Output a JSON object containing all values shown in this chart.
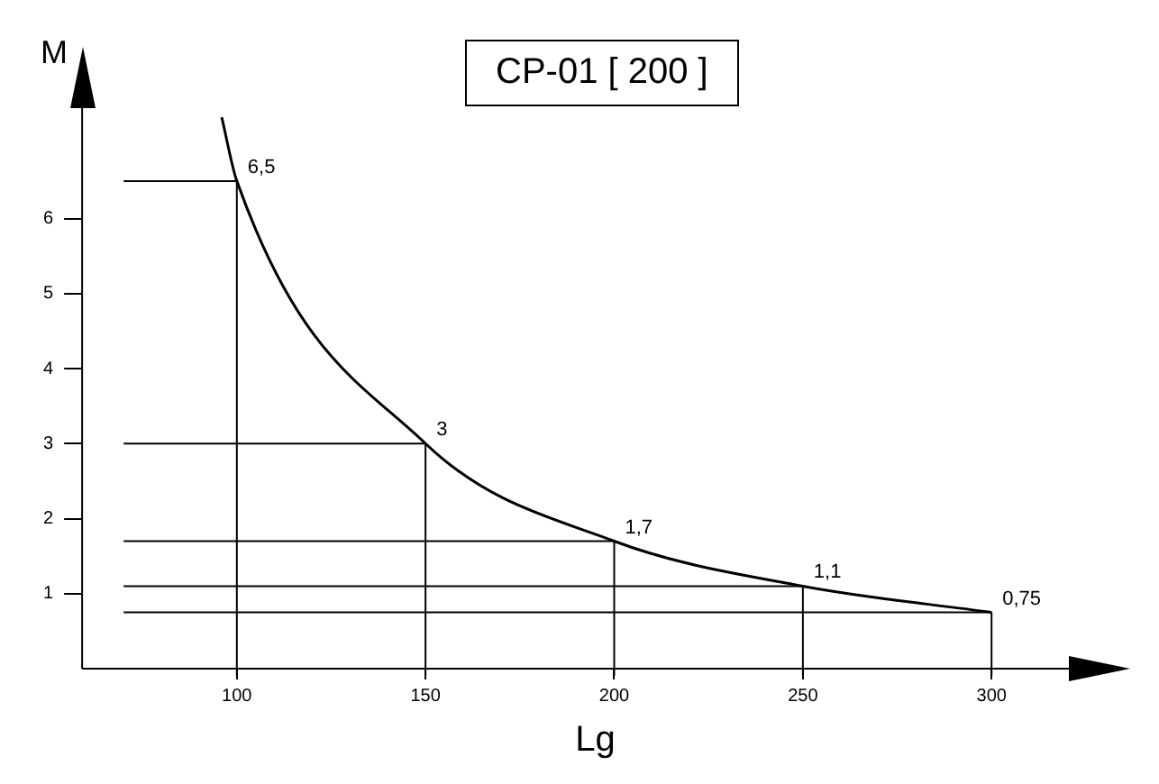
{
  "chart_data": {
    "type": "line",
    "title": "CP-01 [ 200 ]",
    "xlabel": "Lg",
    "ylabel": "M",
    "x": [
      96,
      100,
      150,
      200,
      250,
      300
    ],
    "series": [
      {
        "color": "#000000",
        "values": [
          7.35,
          6.5,
          3,
          1.7,
          1.1,
          0.75
        ],
        "value_labels": [
          null,
          "6,5",
          "3",
          "1,7",
          "1,1",
          "0,75"
        ]
      }
    ],
    "xlim": [
      59,
      331
    ],
    "ylim": [
      0,
      8
    ],
    "xticks": [
      100,
      150,
      200,
      250,
      300
    ],
    "yticks": [
      1,
      2,
      3,
      4,
      5,
      6
    ],
    "ref_lines": [
      {
        "axis": "x",
        "value": 100
      },
      {
        "axis": "x",
        "value": 150
      },
      {
        "axis": "x",
        "value": 200
      },
      {
        "axis": "x",
        "value": 250
      },
      {
        "axis": "x",
        "value": 300
      },
      {
        "axis": "y",
        "value": 6.5
      },
      {
        "axis": "y",
        "value": 3
      },
      {
        "axis": "y",
        "value": 1.7
      },
      {
        "axis": "y",
        "value": 1.1
      },
      {
        "axis": "y",
        "value": 0.75
      }
    ],
    "grid": false,
    "legend": false,
    "marker": "none",
    "line_style": "solid"
  }
}
